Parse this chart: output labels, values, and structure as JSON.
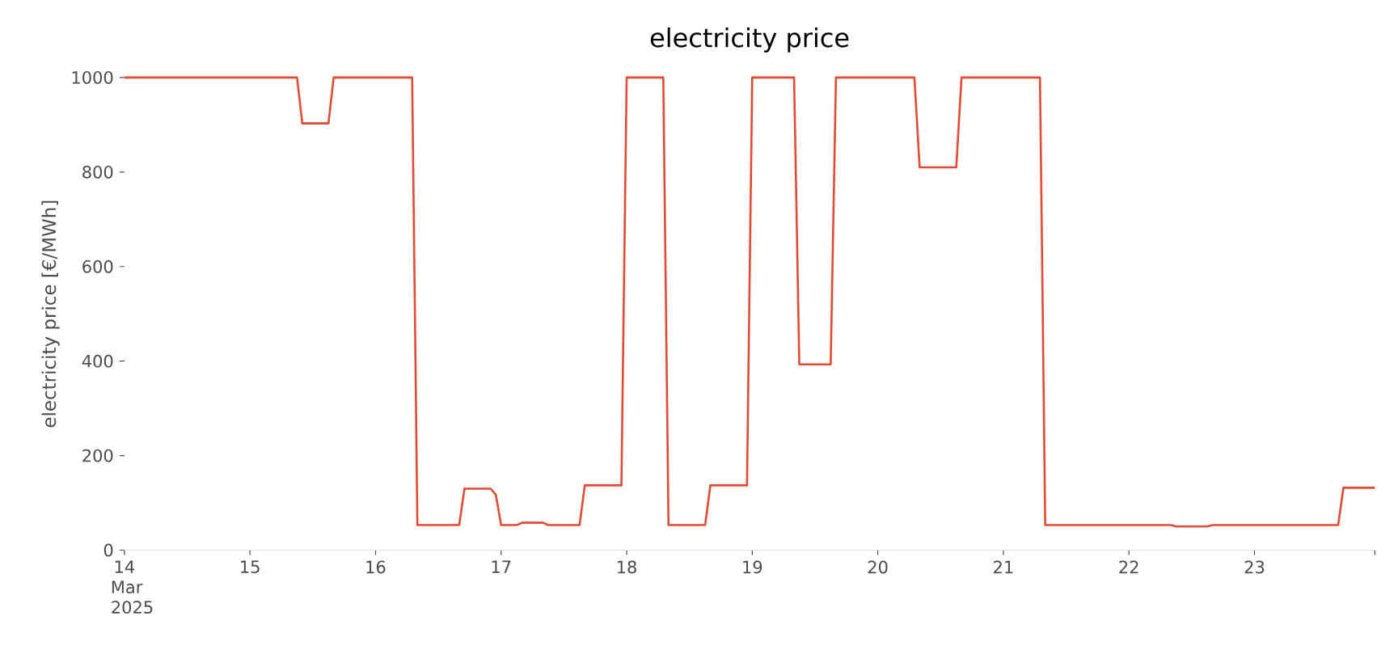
{
  "chart_data": {
    "type": "line",
    "title": "electricity price",
    "ylabel": "electricity price [€/MWh]",
    "x": [
      "2025-03-14T00:00",
      "2025-03-15T09:00",
      "2025-03-15T10:00",
      "2025-03-15T15:00",
      "2025-03-15T16:00",
      "2025-03-16T07:00",
      "2025-03-16T08:00",
      "2025-03-16T16:00",
      "2025-03-16T17:00",
      "2025-03-16T22:00",
      "2025-03-16T23:00",
      "2025-03-17T00:00",
      "2025-03-17T03:00",
      "2025-03-17T04:00",
      "2025-03-17T08:00",
      "2025-03-17T09:00",
      "2025-03-17T15:00",
      "2025-03-17T16:00",
      "2025-03-17T23:00",
      "2025-03-18T00:00",
      "2025-03-18T07:00",
      "2025-03-18T08:00",
      "2025-03-18T15:00",
      "2025-03-18T16:00",
      "2025-03-18T23:00",
      "2025-03-19T00:00",
      "2025-03-19T08:00",
      "2025-03-19T09:00",
      "2025-03-19T15:00",
      "2025-03-19T16:00",
      "2025-03-20T07:00",
      "2025-03-20T08:00",
      "2025-03-20T15:00",
      "2025-03-20T16:00",
      "2025-03-21T07:00",
      "2025-03-21T08:00",
      "2025-03-22T08:00",
      "2025-03-22T09:00",
      "2025-03-22T15:00",
      "2025-03-22T16:00",
      "2025-03-23T16:00",
      "2025-03-23T17:00",
      "2025-03-23T23:00"
    ],
    "series": [
      {
        "color": "#e24a33",
        "values": [
          1000,
          1000,
          903,
          903,
          1000,
          1000,
          53,
          53,
          130,
          130,
          117,
          53,
          53,
          58,
          58,
          53,
          53,
          137,
          137,
          1000,
          1000,
          53,
          53,
          137,
          137,
          1000,
          1000,
          393,
          393,
          1000,
          1000,
          810,
          810,
          1000,
          1000,
          53,
          53,
          50,
          50,
          53,
          53,
          132,
          132
        ]
      }
    ],
    "xlim": [
      "2025-03-14T00:00",
      "2025-03-23T23:00"
    ],
    "xticks": [
      {
        "value": "2025-03-14",
        "label": "14 Mar 2025"
      },
      {
        "value": "2025-03-15",
        "label": "15"
      },
      {
        "value": "2025-03-16",
        "label": "16"
      },
      {
        "value": "2025-03-17",
        "label": "17"
      },
      {
        "value": "2025-03-18",
        "label": "18"
      },
      {
        "value": "2025-03-19",
        "label": "19"
      },
      {
        "value": "2025-03-20",
        "label": "20"
      },
      {
        "value": "2025-03-21",
        "label": "21"
      },
      {
        "value": "2025-03-22",
        "label": "22"
      },
      {
        "value": "2025-03-23",
        "label": "23"
      },
      {
        "value": "2025-03-23T23:00",
        "label": null
      }
    ],
    "ylim": [
      0,
      1000
    ],
    "yticks": [
      0,
      200,
      400,
      600,
      800,
      1000
    ],
    "grid": false,
    "legend": false,
    "marker": "none",
    "line_style": "solid"
  }
}
